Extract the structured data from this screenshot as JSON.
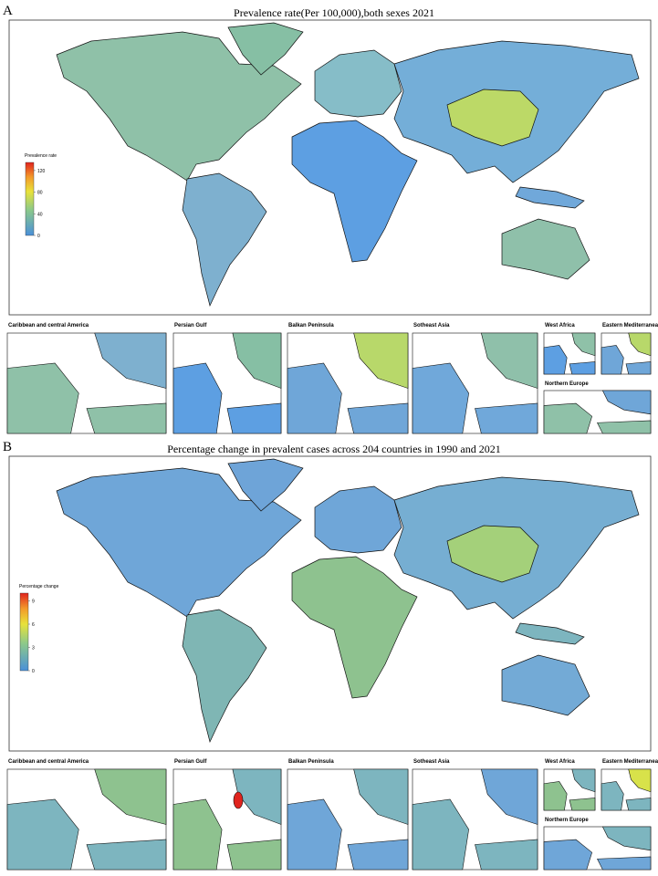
{
  "panels": [
    {
      "label": "A",
      "title": "Prevalence rate(Per 100,000),both sexes 2021",
      "legend": {
        "title": "Prevalence rate",
        "lim": [
          0,
          135
        ],
        "ticks": [
          0,
          40,
          80,
          120
        ]
      },
      "insets": [
        "Caribbean and central America",
        "Persian Gulf",
        "Balkan Peninsula",
        "Sotheast Asia",
        "West Africa",
        "Eastern Mediterranean",
        "Northern Europe"
      ]
    },
    {
      "label": "B",
      "title": "Percentage change in prevalent cases across 204 countries in 1990 and 2021",
      "legend": {
        "title": "Percentage change",
        "lim": [
          0,
          10
        ],
        "ticks": [
          0,
          3,
          6,
          9
        ]
      },
      "insets": [
        "Caribbean and central America",
        "Persian Gulf",
        "Balkan Peninsula",
        "Sotheast Asia",
        "West Africa",
        "Eastern Mediterranean",
        "Northern Europe"
      ]
    }
  ]
}
